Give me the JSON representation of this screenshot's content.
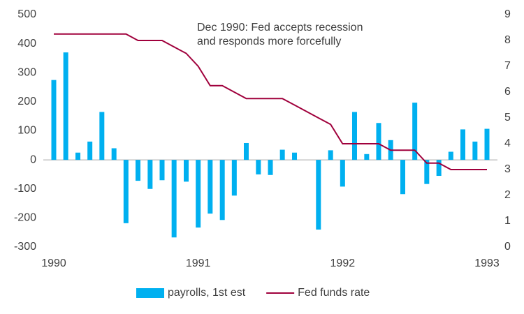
{
  "chart_data": {
    "type": "bar-line",
    "annotation": [
      "Dec 1990: Fed accepts recession",
      "and responds more forcefully"
    ],
    "x": [
      1990,
      1990.083,
      1990.167,
      1990.25,
      1990.333,
      1990.417,
      1990.5,
      1990.583,
      1990.667,
      1990.75,
      1990.833,
      1990.917,
      1991,
      1991.083,
      1991.167,
      1991.25,
      1991.333,
      1991.417,
      1991.5,
      1991.583,
      1991.667,
      1991.75,
      1991.833,
      1991.917,
      1992,
      1992.083,
      1992.167,
      1992.25,
      1992.333,
      1992.417,
      1992.5,
      1992.583,
      1992.667,
      1992.75,
      1992.833,
      1992.917,
      1993
    ],
    "series": [
      {
        "name": "payrolls, 1st est",
        "type": "bar",
        "color": "#00b0f0",
        "values": [
          275,
          370,
          25,
          63,
          165,
          40,
          -218,
          -72,
          -100,
          -70,
          -267,
          -75,
          -233,
          -185,
          -207,
          -123,
          58,
          -50,
          -52,
          35,
          25,
          null,
          -240,
          33,
          -92,
          165,
          20,
          127,
          68,
          -118,
          197,
          -83,
          -55,
          28,
          105,
          63,
          107
        ]
      },
      {
        "name": "Fed funds rate",
        "type": "line",
        "axis": "y2",
        "color": "#a0003c",
        "values": [
          8.25,
          8.25,
          8.25,
          8.25,
          8.25,
          8.25,
          8.25,
          8,
          8,
          8,
          7.75,
          7.5,
          7,
          6.25,
          6.25,
          6,
          5.75,
          5.75,
          5.75,
          5.75,
          5.5,
          5.25,
          5,
          4.75,
          4,
          4,
          4,
          4,
          3.75,
          3.75,
          3.75,
          3.25,
          3.25,
          3,
          3,
          3,
          3
        ]
      }
    ],
    "xlim": [
      1990,
      1993
    ],
    "xticks": [
      1990,
      1991,
      1992,
      1993
    ],
    "ylim": [
      -300,
      500
    ],
    "yticks": [
      -300,
      -200,
      -100,
      0,
      100,
      200,
      300,
      400,
      500
    ],
    "y2lim": [
      0,
      9
    ],
    "y2ticks": [
      0,
      1,
      2,
      3,
      4,
      5,
      6,
      7,
      8,
      9
    ],
    "grid": false,
    "legend": "bottom"
  }
}
